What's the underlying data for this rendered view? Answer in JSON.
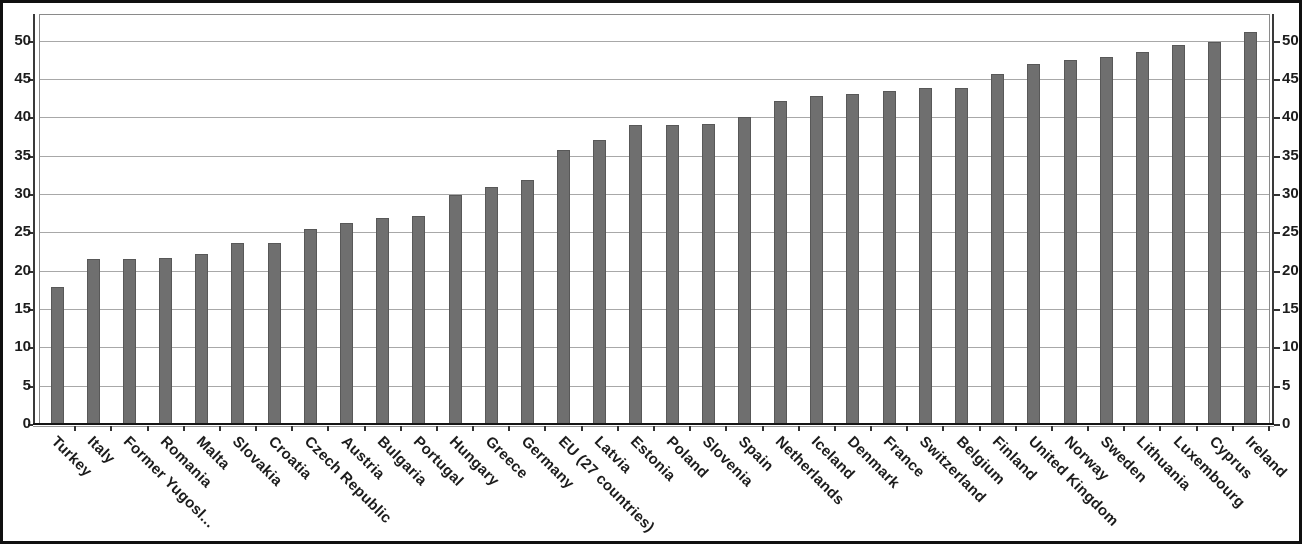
{
  "chart_data": {
    "type": "bar",
    "title": "",
    "xlabel": "",
    "ylabel": "",
    "categories": [
      "Turkey",
      "Italy",
      "Former Yugosl...",
      "Romania",
      "Malta",
      "Slovakia",
      "Croatia",
      "Czech Republic",
      "Austria",
      "Bulgaria",
      "Portugal",
      "Hungary",
      "Greece",
      "Germany",
      "EU (27 countries)",
      "Latvia",
      "Estonia",
      "Poland",
      "Slovenia",
      "Spain",
      "Netherlands",
      "Iceland",
      "Denmark",
      "France",
      "Switzerland",
      "Belgium",
      "Finland",
      "United Kingdom",
      "Norway",
      "Sweden",
      "Lithuania",
      "Luxembourg",
      "Cyprus",
      "Ireland"
    ],
    "values": [
      17.9,
      21.5,
      21.5,
      21.7,
      22.2,
      23.6,
      23.6,
      25.5,
      26.2,
      26.9,
      27.1,
      29.9,
      30.9,
      31.9,
      35.8,
      37.0,
      39.0,
      39.0,
      39.2,
      40.1,
      42.2,
      42.8,
      43.0,
      43.5,
      43.8,
      43.9,
      45.7,
      47.0,
      47.5,
      47.9,
      48.5,
      49.5,
      49.9,
      51.1
    ],
    "yticks": [
      0,
      5,
      10,
      15,
      20,
      25,
      30,
      35,
      40,
      45,
      50
    ],
    "ylim": [
      0,
      53.5
    ],
    "dual_y_axis": true,
    "grid": "horizontal",
    "legend": "none",
    "xlabel_rotation_deg": 45,
    "colors": {
      "bar_fill": "#6f6f6f",
      "bar_border": "#585858",
      "gridline": "#a8a8a8",
      "axis_spine": "#3a3a3a",
      "x_axis_line": "#151515",
      "x_axis_shadow": "#9a9a9a",
      "tick_text": "#1c1c1c",
      "frame_border": "#101010",
      "background": "#ffffff"
    }
  }
}
